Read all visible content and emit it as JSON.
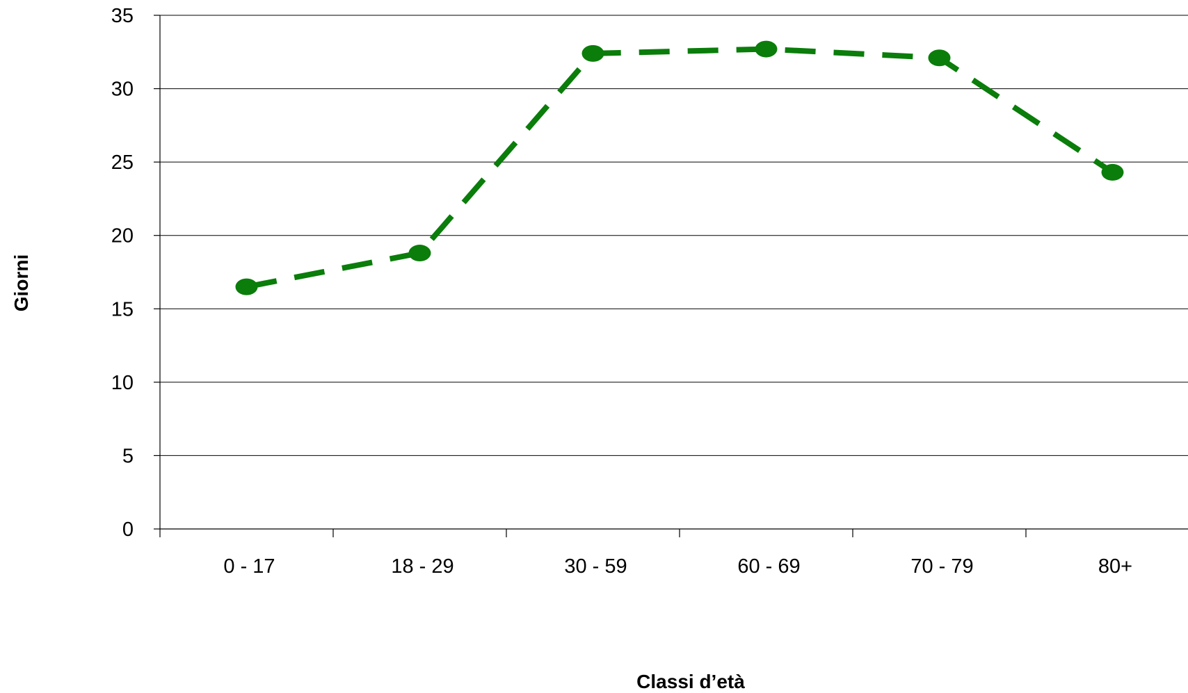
{
  "chart_data": {
    "type": "line",
    "title": "",
    "xlabel": "Classi d’età",
    "ylabel": "Giorni",
    "categories": [
      "0 - 17",
      "18 - 29",
      "30 - 59",
      "60 - 69",
      "70 - 79",
      "80+"
    ],
    "y_ticks": [
      "0",
      "5",
      "10",
      "15",
      "20",
      "25",
      "30",
      "35"
    ],
    "ylim": [
      0,
      35
    ],
    "grid": true,
    "legend": "none",
    "series": [
      {
        "values": [
          16.5,
          18.8,
          32.4,
          32.7,
          32.1,
          24.3
        ],
        "color": "#0a7d0a",
        "line_style": "dashed",
        "marker": "circle"
      }
    ]
  }
}
